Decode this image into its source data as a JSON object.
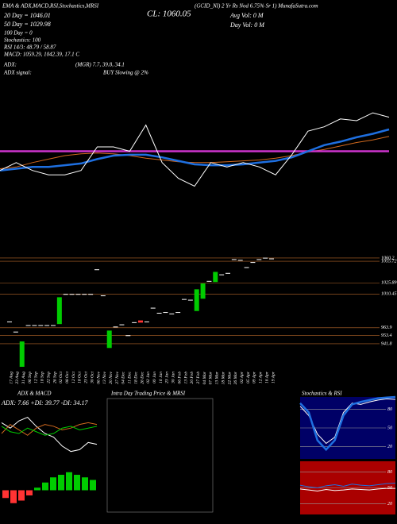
{
  "header": {
    "top_left": "EMA & ADX,MACD,RSI,Stochastics,MRSI",
    "top_right": "(GCID_NI) 2 Yr Rs Nod 6.75% Sr 1) MunafaSutra.com",
    "ema20": "20 Day = 1046.01",
    "close": "CL: 1060.05",
    "avg_vol": "Avg Vol: 0  M",
    "ema50": "50 Day = 1029.98",
    "day_vol": "Day Vol: 0  M",
    "ema100": "100 Day = 0",
    "stoch": "Stochastics: 100",
    "rsi": "RSI 14/3: 48.79 / 58.87",
    "macd": "MACD: 1059.29, 1042.39, 17.1 C",
    "adx": "ADX:",
    "adx_values": "(MGR) 7.7, 39.8, 34.1",
    "adx_signal_label": "ADX signal:",
    "adx_signal": "BUY Slowing @ 2%",
    "intraday_title": "Intra Day Trading Price & MRSI"
  },
  "chart_data": [
    {
      "type": "line",
      "ylim": [
        0,
        100
      ],
      "series": [
        {
          "color": "#d2691e",
          "style": "thin",
          "values": [
            25,
            27,
            32,
            36,
            40,
            42,
            43,
            42,
            40,
            37,
            35,
            33,
            32,
            32,
            33,
            34,
            35,
            37,
            40,
            44,
            47,
            51,
            55,
            58,
            62
          ]
        },
        {
          "color": "#cc33cc",
          "style": "thick",
          "values": [
            45,
            45,
            45,
            45,
            45,
            45,
            45,
            45,
            45,
            45,
            45,
            45,
            45,
            45,
            45,
            45,
            45,
            45,
            45,
            45,
            45,
            45,
            45,
            45,
            45
          ]
        },
        {
          "color": "#1e6fe0",
          "style": "thick",
          "values": [
            23,
            25,
            27,
            27,
            29,
            31,
            36,
            40,
            41,
            41,
            38,
            34,
            30,
            29,
            29,
            30,
            32,
            34,
            38,
            45,
            52,
            56,
            61,
            65,
            70
          ]
        },
        {
          "color": "#ffffff",
          "style": "thin",
          "values": [
            23,
            32,
            23,
            18,
            18,
            23,
            50,
            50,
            45,
            75,
            32,
            14,
            5,
            32,
            27,
            32,
            27,
            18,
            41,
            68,
            73,
            82,
            80,
            89,
            84
          ]
        }
      ]
    },
    {
      "type": "candlestick",
      "ylim": [
        910,
        1070
      ],
      "yticks": [
        1060.2,
        1055.72,
        1025.89,
        1010.45,
        963.9,
        953.4,
        941.8
      ],
      "grid": true,
      "grid_color": "#b8682b",
      "up_color": "#00cc00",
      "down_color": "#ff3333",
      "doji_color": "#ffffff",
      "categories": [
        "17 Aug",
        "23 Aug",
        "31 Aug",
        "06 Sep",
        "12 Sep",
        "18 Sep",
        "22 Sep",
        "26 Sep",
        "02 Oct",
        "08 Oct",
        "12 Oct",
        "18 Oct",
        "23 Oct",
        "30 Oct",
        "06 Nov",
        "13 Nov",
        "20 Nov",
        "27 Nov",
        "04 Dec",
        "11 Dec",
        "18 Dec",
        "26 Dec",
        "02 Jan",
        "09 Jan",
        "16 Jan",
        "23 Jan",
        "30 Jan",
        "06 Feb",
        "13 Feb",
        "20 Feb",
        "27 Feb",
        "04 Mar",
        "07 Mar",
        "13 Mar",
        "18 Mar",
        "22 Mar",
        "26 Mar",
        "02 Apr",
        "05 Apr",
        "09 Apr",
        "12 Apr",
        "16 Apr",
        "19 Apr"
      ],
      "open": [
        972,
        958,
        910,
        967,
        967,
        967,
        967,
        967,
        969,
        1010,
        1010,
        1010,
        1010,
        1010,
        1044,
        1008,
        936,
        965,
        968,
        953,
        971,
        974,
        972,
        991,
        984,
        985,
        983,
        985,
        1003,
        1002,
        987,
        1004,
        1028,
        1027,
        1037,
        1039,
        1058,
        1057,
        1047,
        1054,
        1058,
        1060,
        1059
      ],
      "close": [
        972,
        958,
        945,
        967,
        967,
        967,
        967,
        967,
        1006,
        1010,
        1010,
        1010,
        1010,
        1010,
        1044,
        1008,
        960,
        965,
        968,
        953,
        971,
        971,
        972,
        991,
        984,
        985,
        983,
        985,
        1003,
        1002,
        1017,
        1025,
        1028,
        1041,
        1037,
        1039,
        1058,
        1057,
        1047,
        1054,
        1058,
        1060,
        1059
      ]
    },
    {
      "type": "line",
      "title": "ADX  & MACD",
      "subtitle": "ADX: 7.66  +DI: 39.77  -DI: 34.17",
      "ylim": [
        0,
        60
      ],
      "series": [
        {
          "color": "#ffffff",
          "style": "thin",
          "values": [
            42,
            36,
            44,
            48,
            38,
            30,
            26,
            16,
            10,
            12,
            20,
            18
          ]
        },
        {
          "color": "#d2691e",
          "style": "thin",
          "values": [
            30,
            40,
            34,
            28,
            36,
            40,
            38,
            34,
            36,
            40,
            42,
            40
          ]
        },
        {
          "color": "#00cc00",
          "style": "thin",
          "values": [
            38,
            32,
            30,
            36,
            32,
            28,
            30,
            36,
            38,
            34,
            36,
            38
          ]
        }
      ]
    },
    {
      "type": "bar",
      "ylim": [
        -1,
        1
      ],
      "pos_color": "#00cc00",
      "neg_color": "#ff3333",
      "values": [
        -0.3,
        -0.5,
        -0.4,
        -0.2,
        0.1,
        0.3,
        0.5,
        0.6,
        0.7,
        0.6,
        0.5,
        0.4
      ]
    },
    {
      "type": "line",
      "title": "Stochastics & RSI",
      "ylim": [
        0,
        100
      ],
      "yticks": [
        80,
        50,
        20
      ],
      "background": "#000066",
      "series": [
        {
          "color": "#ffffff",
          "style": "thin",
          "values": [
            85,
            70,
            40,
            25,
            35,
            75,
            90,
            88,
            92,
            95,
            97,
            96
          ]
        },
        {
          "color": "#1e6fe0",
          "style": "thick",
          "values": [
            90,
            75,
            30,
            15,
            30,
            70,
            88,
            92,
            95,
            98,
            99,
            100
          ]
        }
      ]
    },
    {
      "type": "line",
      "ylim": [
        0,
        100
      ],
      "yticks": [
        80,
        50,
        20
      ],
      "background": "#aa0000",
      "series": [
        {
          "color": "#ffffff",
          "style": "thin",
          "values": [
            48,
            46,
            44,
            47,
            45,
            46,
            48,
            47,
            46,
            48,
            49,
            49
          ]
        },
        {
          "color": "#1e6fe0",
          "style": "thin",
          "values": [
            55,
            52,
            50,
            54,
            56,
            53,
            57,
            55,
            54,
            56,
            58,
            59
          ]
        }
      ]
    }
  ]
}
